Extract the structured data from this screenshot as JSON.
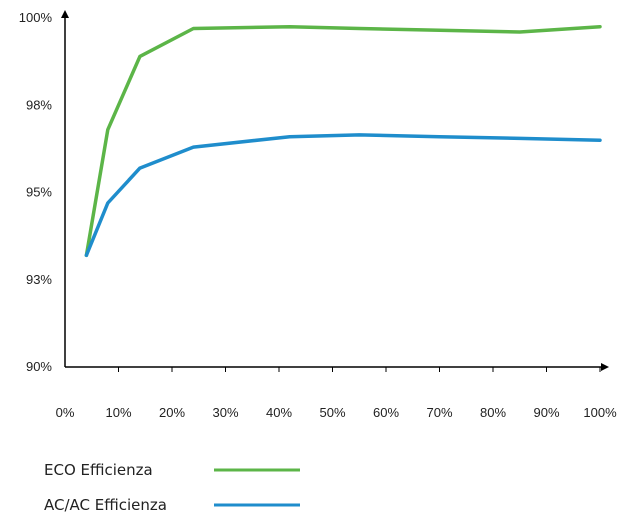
{
  "chart_data": {
    "type": "line",
    "title": "",
    "xlabel": "",
    "ylabel": "",
    "x": [
      4,
      8,
      14,
      24,
      42,
      55,
      70,
      85,
      100
    ],
    "xlim": [
      0,
      100
    ],
    "x_tick_labels": [
      "0%",
      "10%",
      "20%",
      "30%",
      "40%",
      "50%",
      "60%",
      "70%",
      "80%",
      "90%",
      "100%"
    ],
    "y_tick_labels": [
      "100%",
      "98%",
      "95%",
      "93%",
      "90%"
    ],
    "y_tick_values": [
      100,
      97.5,
      95,
      92.5,
      90
    ],
    "ylim": [
      90,
      100
    ],
    "grid": false,
    "legend_position": "bottom-left",
    "series": [
      {
        "name": "ECO Efficienza",
        "color": "#5cb548",
        "values": [
          93.2,
          96.8,
          98.9,
          99.7,
          99.75,
          99.7,
          99.65,
          99.6,
          99.75
        ]
      },
      {
        "name": "AC/AC Efficienza",
        "color": "#1f8dcc",
        "values": [
          93.2,
          94.7,
          95.7,
          96.3,
          96.6,
          96.65,
          96.6,
          96.55,
          96.5
        ]
      }
    ]
  }
}
